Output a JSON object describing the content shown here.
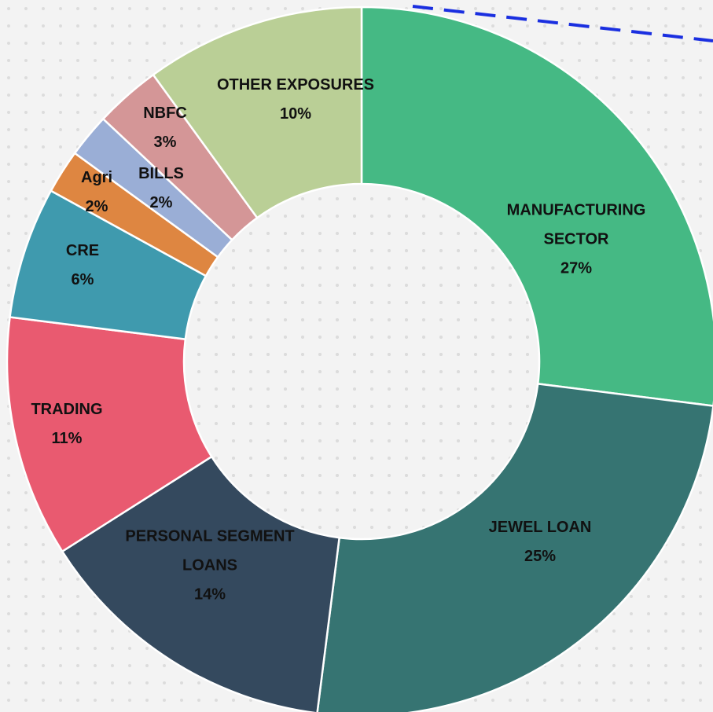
{
  "chart_data": {
    "type": "donut",
    "categories": [
      "MANUFACTURING SECTOR",
      "JEWEL LOAN",
      "PERSONAL SEGMENT LOANS",
      "TRADING",
      "CRE",
      "Agri",
      "BILLS",
      "NBFC",
      "OTHER EXPOSURES"
    ],
    "values": [
      27,
      25,
      14,
      11,
      6,
      2,
      2,
      3,
      10
    ],
    "value_labels": [
      "27%",
      "25%",
      "14%",
      "11%",
      "6%",
      "2%",
      "2%",
      "3%",
      "10%"
    ],
    "colors": [
      "#45b984",
      "#367472",
      "#34495e",
      "#e95a70",
      "#3f9aae",
      "#de8641",
      "#9aaed6",
      "#d49697",
      "#bacf96"
    ]
  }
}
